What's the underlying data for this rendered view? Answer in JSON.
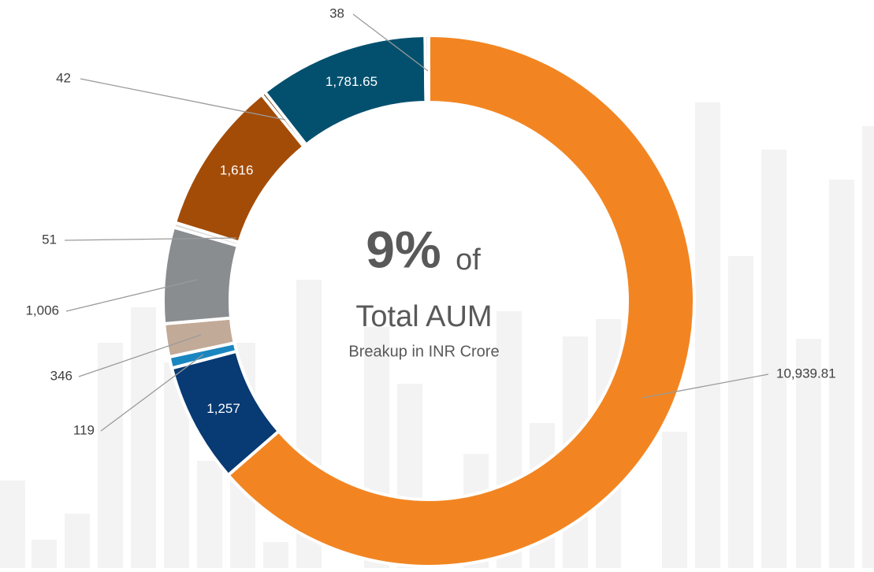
{
  "chart_data": {
    "type": "donut",
    "center_texts": [
      "9%",
      "of",
      "Total AUM",
      "Breakup in INR Crore"
    ],
    "values": [
      10939.81,
      1257,
      119,
      346,
      1006,
      51,
      1616,
      42,
      1781.65,
      38
    ],
    "value_labels": [
      "10,939.81",
      "1,257",
      "119",
      "346",
      "1,006",
      "51",
      "1,616",
      "42",
      "1,781.65",
      "38"
    ],
    "colors": [
      "#f28522",
      "#083a73",
      "#1a86c0",
      "#c2aa98",
      "#8a8d90",
      "#dcdcdc",
      "#a34c07",
      "#6b3a10",
      "#02506e",
      "#d4dde2"
    ]
  }
}
